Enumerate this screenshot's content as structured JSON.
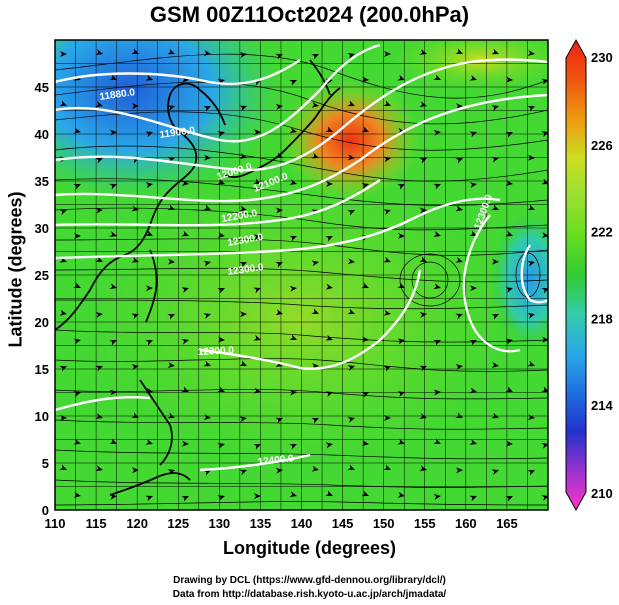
{
  "header": {
    "title": "GSM 00Z11Oct2024 (200.0hPa)"
  },
  "axes": {
    "xlabel": "Longitude (degrees)",
    "ylabel": "Latitude  (degrees)",
    "x_ticks": [
      "110",
      "115",
      "120",
      "125",
      "130",
      "135",
      "140",
      "145",
      "150",
      "155",
      "160",
      "165"
    ],
    "y_ticks": [
      "0",
      "5",
      "10",
      "15",
      "20",
      "25",
      "30",
      "35",
      "40",
      "45"
    ],
    "x_range": [
      110,
      170
    ],
    "y_range": [
      0,
      50
    ]
  },
  "colorbar": {
    "ticks": [
      "210",
      "214",
      "218",
      "222",
      "226",
      "230"
    ],
    "range": [
      210,
      230
    ],
    "colors": [
      "#ff33cc",
      "#9933cc",
      "#2233cc",
      "#1f6fe0",
      "#2aa8e8",
      "#33ccaa",
      "#33cc33",
      "#66dd22",
      "#99e033",
      "#ccdd22",
      "#ee9911",
      "#ee5511",
      "#ee2211"
    ]
  },
  "contours": {
    "labels": [
      "11880.0",
      "11900.0",
      "12000.0",
      "12100.0",
      "12200.0",
      "12300.0",
      "12300.0",
      "12300.0",
      "12300.0",
      "12400.0"
    ]
  },
  "credits": {
    "line1": "Drawing by DCL (https://www.gfd-dennou.org/library/dcl/)",
    "line2": "Data from http://database.rish.kyoto-u.ac.jp/arch/jmadata/"
  }
}
